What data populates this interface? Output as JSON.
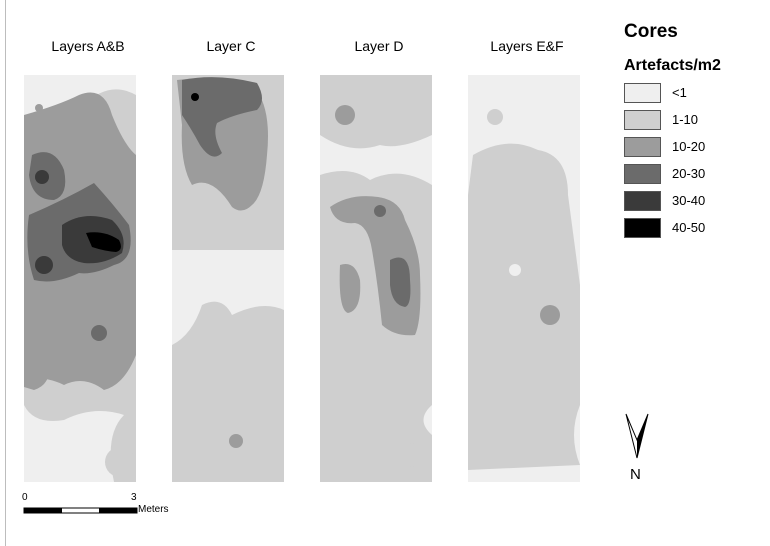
{
  "map": {
    "layers": [
      {
        "id": "ab",
        "title": "Layers A&B"
      },
      {
        "id": "c",
        "title": "Layer C"
      },
      {
        "id": "d",
        "title": "Layer D"
      },
      {
        "id": "ef",
        "title": "Layers E&F"
      }
    ]
  },
  "legend": {
    "title": "Cores",
    "subtitle": "Artefacts/m2",
    "classes": [
      {
        "label": "<1",
        "color": "#efefef"
      },
      {
        "label": "1-10",
        "color": "#cfcfcf"
      },
      {
        "label": "10-20",
        "color": "#9c9c9c"
      },
      {
        "label": "20-30",
        "color": "#6b6b6b"
      },
      {
        "label": "30-40",
        "color": "#3a3a3a"
      },
      {
        "label": "40-50",
        "color": "#000000"
      }
    ]
  },
  "north_arrow": {
    "label": "N"
  },
  "scale_bar": {
    "start": "0",
    "end": "3",
    "unit": "Meters"
  }
}
